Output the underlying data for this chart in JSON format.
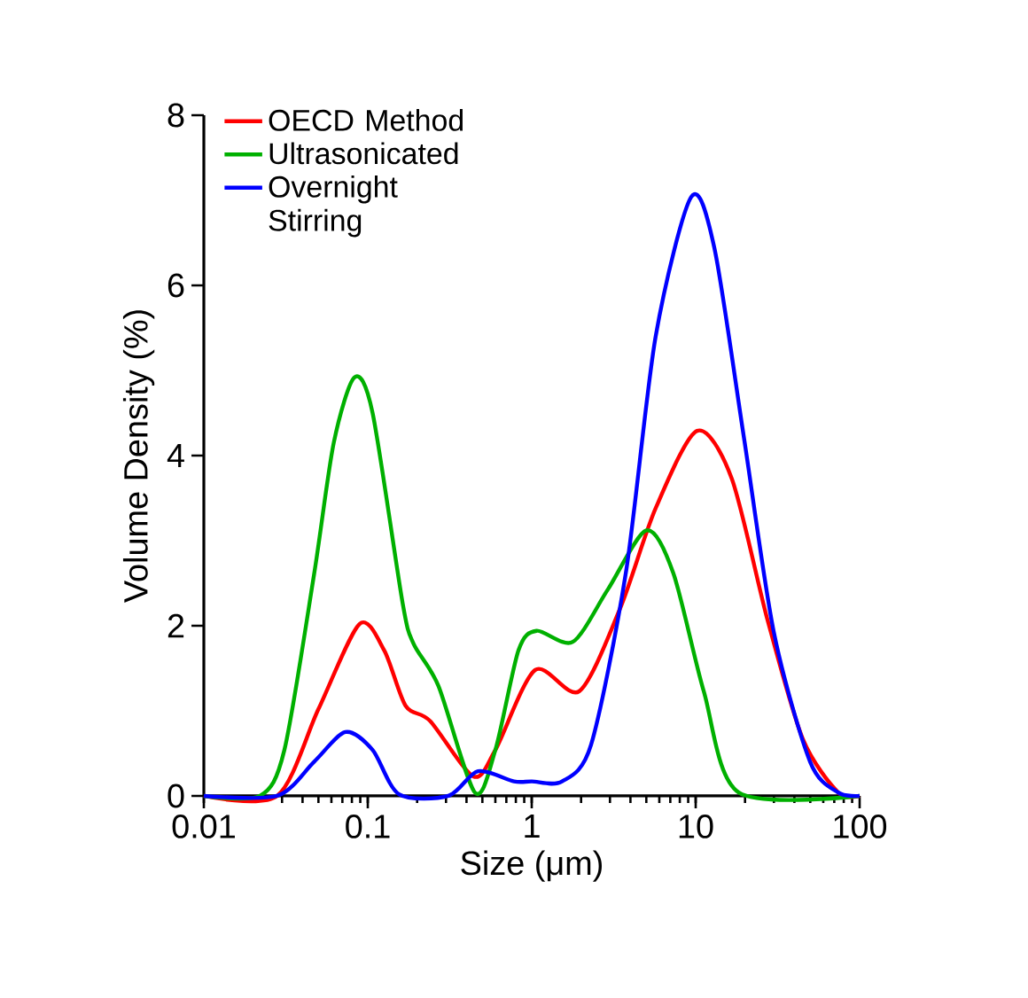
{
  "chart_data": {
    "type": "line",
    "xlabel": "Size (μm)",
    "ylabel": "Volume Density (%)",
    "log": "x",
    "xlim": [
      0.01,
      100
    ],
    "ylim": [
      0,
      8
    ],
    "xticks": [
      0.01,
      0.1,
      1,
      10,
      100
    ],
    "yticks": [
      0,
      2,
      4,
      6,
      8
    ],
    "grid": false,
    "legend": "top left",
    "marker": "none",
    "line_style": "solid",
    "series": [
      {
        "name": "OECD Method",
        "color": "#ff0000",
        "x": [
          0.01,
          0.028,
          0.05,
          0.089,
          0.126,
          0.17,
          0.24,
          0.44,
          0.6,
          1.05,
          1.95,
          3.47,
          5.7,
          10.2,
          16.6,
          27.5,
          45,
          74,
          100
        ],
        "values": [
          0,
          0,
          1.02,
          2.02,
          1.71,
          1.06,
          0.88,
          0.23,
          0.54,
          1.48,
          1.23,
          2.21,
          3.38,
          4.29,
          3.73,
          2.06,
          0.67,
          0.04,
          0
        ]
      },
      {
        "name": "Ultrasonicated",
        "color": "#00b000",
        "x": [
          0.01,
          0.022,
          0.031,
          0.047,
          0.062,
          0.083,
          0.107,
          0.163,
          0.19,
          0.27,
          0.45,
          0.6,
          0.83,
          1.07,
          1.78,
          2.9,
          5.0,
          7.3,
          11.2,
          18.3,
          100
        ],
        "values": [
          0,
          0,
          0.54,
          2.6,
          4.15,
          4.92,
          4.5,
          2.27,
          1.79,
          1.29,
          0.04,
          0.54,
          1.71,
          1.94,
          1.81,
          2.42,
          3.12,
          2.62,
          1.23,
          0.04,
          0
        ]
      },
      {
        "name": "Overnight Stirring",
        "color": "#0000ff",
        "x": [
          0.01,
          0.028,
          0.047,
          0.073,
          0.107,
          0.155,
          0.31,
          0.47,
          0.78,
          1.0,
          1.53,
          2.3,
          3.75,
          5.7,
          9.4,
          13,
          19.7,
          30,
          49.9,
          74,
          100
        ],
        "values": [
          0,
          0,
          0.4,
          0.75,
          0.54,
          0.02,
          0,
          0.29,
          0.17,
          0.17,
          0.17,
          0.6,
          2.62,
          5.4,
          7.04,
          6.44,
          4.21,
          1.92,
          0.4,
          0.04,
          0
        ]
      }
    ]
  }
}
